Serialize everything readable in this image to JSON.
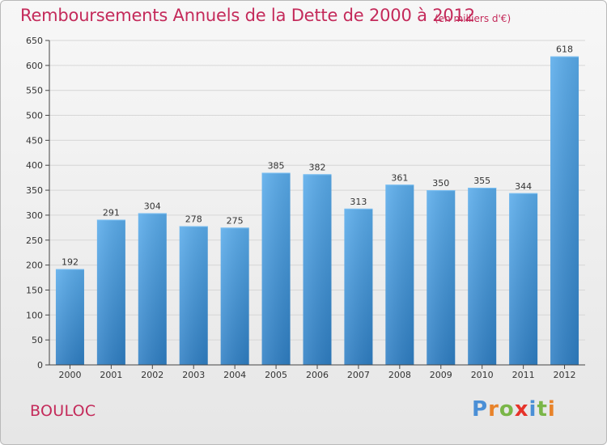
{
  "header": {
    "title": "Remboursements Annuels de la Dette de 2000 à 2012",
    "subtitle": "(en milliers d'€)"
  },
  "footer": {
    "commune": "BOULOC",
    "logo_letters": [
      "P",
      "r",
      "o",
      "x",
      "i",
      "t",
      "i"
    ],
    "logo_colors": [
      "#4a8fd6",
      "#e8832a",
      "#7ab648",
      "#e6332a",
      "#4a8fd6",
      "#7ab648",
      "#e8832a"
    ]
  },
  "colors": {
    "bar_top": "#5aaceb",
    "bar_bottom": "#2f7fc4",
    "title": "#c42a5a",
    "grid": "#d6d6d6"
  },
  "chart_data": {
    "type": "bar",
    "title": "Remboursements Annuels de la Dette de 2000 à 2012",
    "subtitle": "(en milliers d'€)",
    "xlabel": "",
    "ylabel": "",
    "categories": [
      "2000",
      "2001",
      "2002",
      "2003",
      "2004",
      "2005",
      "2006",
      "2007",
      "2008",
      "2009",
      "2010",
      "2011",
      "2012"
    ],
    "values": [
      192,
      291,
      304,
      278,
      275,
      385,
      382,
      313,
      361,
      350,
      355,
      344,
      618
    ],
    "ylim": [
      0,
      650
    ],
    "yticks": [
      0,
      50,
      100,
      150,
      200,
      250,
      300,
      350,
      400,
      450,
      500,
      550,
      600,
      650
    ],
    "grid": true,
    "legend": "none"
  }
}
